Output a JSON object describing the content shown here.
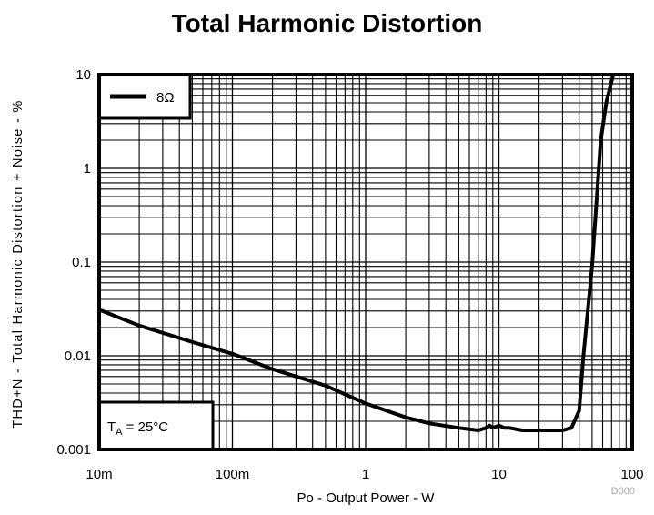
{
  "chart_data": {
    "type": "line",
    "title": "Total Harmonic Distortion",
    "xlabel": "Po - Output Power - W",
    "ylabel": "THD+N - Total Harmonic Distortion + Noise - %",
    "xscale": "log",
    "yscale": "log",
    "xlim": [
      0.01,
      100
    ],
    "ylim": [
      0.001,
      10
    ],
    "xticks": [
      {
        "v": 0.01,
        "label": "10m"
      },
      {
        "v": 0.1,
        "label": "100m"
      },
      {
        "v": 1,
        "label": "1"
      },
      {
        "v": 10,
        "label": "10"
      },
      {
        "v": 100,
        "label": "100"
      }
    ],
    "yticks": [
      {
        "v": 0.001,
        "label": "0.001"
      },
      {
        "v": 0.01,
        "label": "0.01"
      },
      {
        "v": 0.1,
        "label": "0.1"
      },
      {
        "v": 1,
        "label": "1"
      },
      {
        "v": 10,
        "label": "10"
      }
    ],
    "grid": true,
    "legend": {
      "placement": "top-left",
      "entries": [
        "8Ω"
      ]
    },
    "annotation": {
      "text": "T",
      "sub": "A",
      "rest": " = 25°C",
      "placement": "bottom-left"
    },
    "footnote": "D000",
    "series": [
      {
        "name": "8Ω",
        "x": [
          0.01,
          0.02,
          0.05,
          0.1,
          0.2,
          0.5,
          1,
          2,
          3,
          5,
          7,
          8,
          8.5,
          9,
          10,
          11,
          12,
          15,
          20,
          30,
          35,
          38,
          40,
          43,
          50,
          58,
          64,
          72
        ],
        "y": [
          0.031,
          0.021,
          0.014,
          0.0105,
          0.0072,
          0.0048,
          0.0031,
          0.0022,
          0.0019,
          0.0017,
          0.0016,
          0.0017,
          0.0018,
          0.0017,
          0.0018,
          0.0017,
          0.0017,
          0.0016,
          0.0016,
          0.0016,
          0.0017,
          0.0022,
          0.0026,
          0.0098,
          0.091,
          1.95,
          5.1,
          10
        ]
      }
    ]
  }
}
